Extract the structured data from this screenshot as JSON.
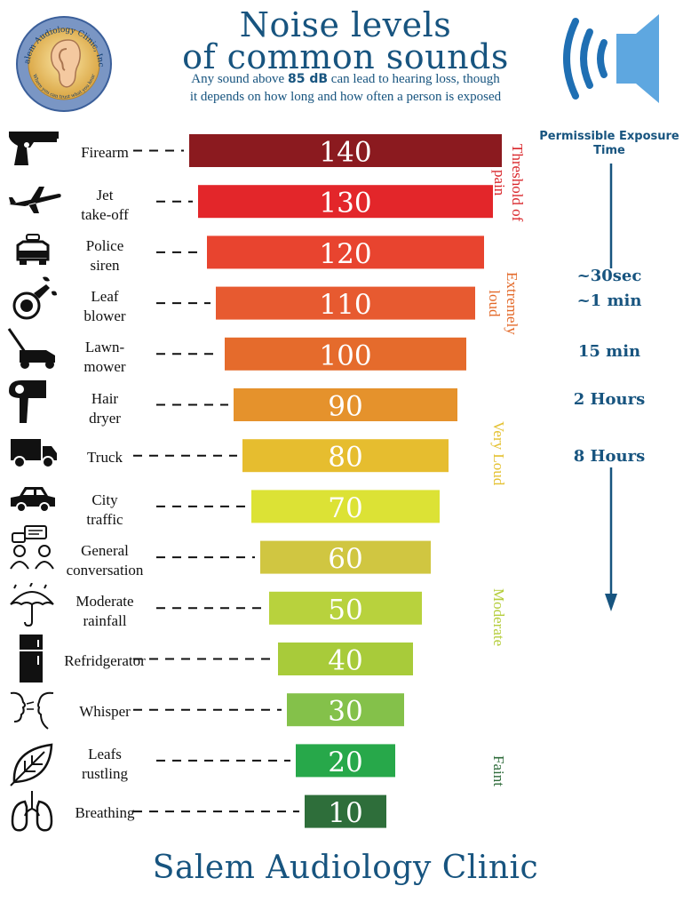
{
  "header": {
    "title_line1": "Noise levels",
    "title_line2": "of common sounds",
    "subtitle_pre": "Any sound above ",
    "subtitle_bold": "85 dB",
    "subtitle_post": " can lead to hearing loss, though",
    "subtitle_line2": "it depends on how long and how often a person is exposed"
  },
  "logo": {
    "name": "Salem Audiology Clinic, Inc.",
    "tagline": "Where you can trust what you hear"
  },
  "colors": {
    "brand": "#17547f"
  },
  "exposure": {
    "header_line1": "Permissible Exposure",
    "header_line2": "Time",
    "times": [
      {
        "label": "~30sec",
        "level": 115
      },
      {
        "label": "~1 min",
        "level": 110
      },
      {
        "label": "15 min",
        "level": 100
      },
      {
        "label": "2 Hours",
        "level": 90
      },
      {
        "label": "8 Hours",
        "level": 80
      }
    ]
  },
  "zones": [
    {
      "label": "Threshold of\npain",
      "color": "#d9262b"
    },
    {
      "label": "Extremely\nloud",
      "color": "#e36a2a"
    },
    {
      "label": "Very Loud",
      "color": "#e4c131"
    },
    {
      "label": "Moderate",
      "color": "#b5cd3c"
    },
    {
      "label": "Faint",
      "color": "#2e6b3a"
    }
  ],
  "chart_data": {
    "type": "bar",
    "categories": [
      "Firearm",
      "Jet take-off",
      "Police siren",
      "Leaf blower",
      "Lawn-mower",
      "Hair dryer",
      "Truck",
      "City traffic",
      "General conversation",
      "Moderate rainfall",
      "Refridgerator",
      "Whisper",
      "Leafs rustling",
      "Breathing"
    ],
    "display_labels": [
      "Firearm",
      "Jet\ntake-off",
      "Police\nsiren",
      "Leaf\nblower",
      "Lawn-\nmower",
      "Hair\ndryer",
      "Truck",
      "City\ntraffic",
      "General\nconversation",
      "Moderate\nrainfall",
      "Refridgerator",
      "Whisper",
      "Leafs\nrustling",
      "Breathing"
    ],
    "icons": [
      "pistol-icon",
      "airplane-icon",
      "police-car-icon",
      "leaf-blower-icon",
      "lawn-mower-icon",
      "hair-dryer-icon",
      "truck-icon",
      "car-icon",
      "conversation-icon",
      "umbrella-rain-icon",
      "refrigerator-icon",
      "whisper-icon",
      "leaf-icon",
      "lungs-icon"
    ],
    "values": [
      140,
      130,
      120,
      110,
      100,
      90,
      80,
      70,
      60,
      50,
      40,
      30,
      20,
      10
    ],
    "value_labels": [
      "140",
      "130",
      "120",
      "110",
      "100",
      "90",
      "80",
      "70",
      "60",
      "50",
      "40",
      "30",
      "20",
      "10"
    ],
    "colors": [
      "#8b1a1f",
      "#e3262a",
      "#e8442f",
      "#e75a30",
      "#e56b2c",
      "#e5922c",
      "#e6bd2f",
      "#dce235",
      "#d0c641",
      "#b8d23d",
      "#a8cb3a",
      "#84c14a",
      "#27a84a",
      "#2e6e3a"
    ],
    "unit": "dB"
  },
  "footer": "Salem Audiology Clinic"
}
